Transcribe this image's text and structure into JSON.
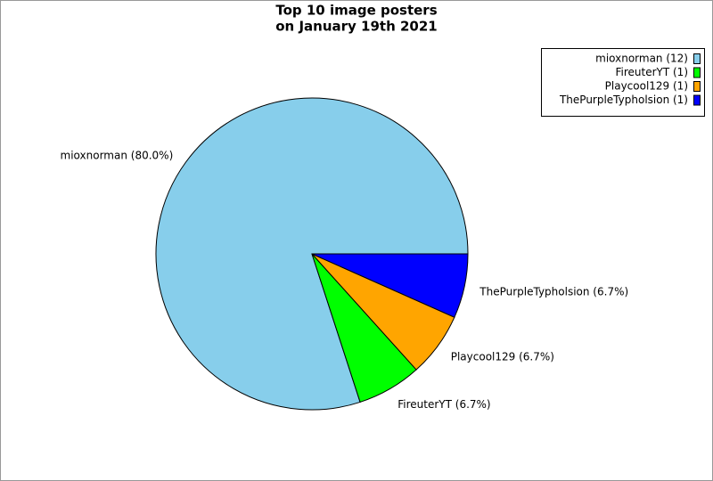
{
  "chart_data": {
    "type": "pie",
    "title": [
      "Top 10 image posters",
      "on January 19th 2021"
    ],
    "values": [
      12,
      1,
      1,
      1
    ],
    "legend_labels": [
      "mioxnorman (12)",
      "FireuterYT (1)",
      "Playcool129 (1)",
      "ThePurpleTypholsion (1)"
    ],
    "percentages": [
      80.0,
      6.7,
      6.7,
      6.7
    ],
    "value_labels": [
      "mioxnorman (80.0%)",
      "FireuterYT (6.7%)",
      "Playcool129 (6.7%)",
      "ThePurpleTypholsion (6.7%)"
    ],
    "colors": [
      "#87ceeb",
      "#00ff00",
      "#ffa500",
      "#0000ff"
    ],
    "legend": "upper right"
  }
}
